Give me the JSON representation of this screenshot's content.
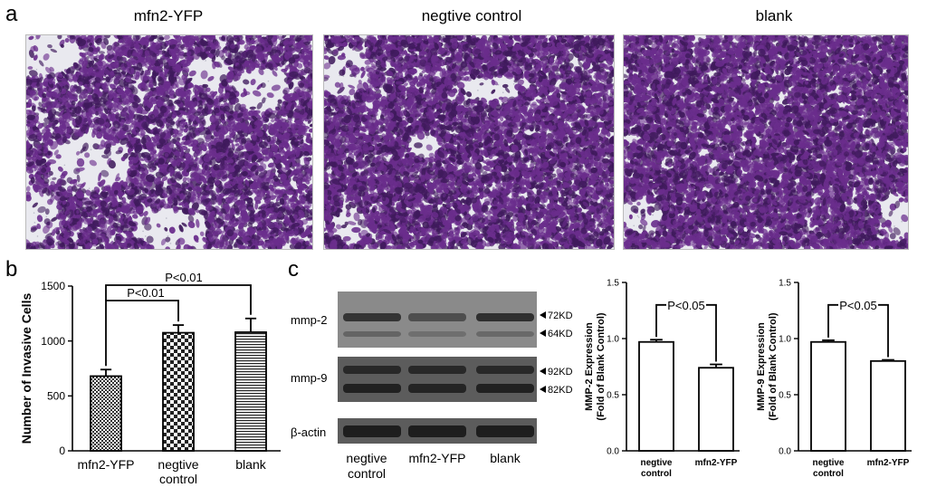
{
  "panel_a": {
    "letter": "a",
    "images": [
      {
        "title": "mfn2-YFP"
      },
      {
        "title": "negtive control"
      },
      {
        "title": "blank"
      }
    ]
  },
  "panel_b": {
    "letter": "b",
    "p_labels": [
      "P<0.01",
      "P<0.01"
    ]
  },
  "panel_c": {
    "letter": "c",
    "blot_rows": [
      "mmp-2",
      "mmp-9",
      "β-actin"
    ],
    "kd_markers": [
      "72KD",
      "64KD",
      "92KD",
      "82KD"
    ],
    "lanes": [
      "negtive\ncontrol",
      "mfn2-YFP",
      "blank"
    ],
    "lane_lines": [
      [
        "negtive",
        "control"
      ],
      [
        "mfn2-YFP"
      ],
      [
        "blank"
      ]
    ],
    "p_labels": [
      "P<0.05",
      "P<0.05"
    ]
  },
  "colors": {
    "stain": "#6a2d8c",
    "stain_dark": "#3f1a5c",
    "background_light": "#e9e9ef",
    "blot_bg": "#6b6b6b",
    "band": "#1e1e1e"
  },
  "chart_data": [
    {
      "type": "bar",
      "panel": "b",
      "categories": [
        "mfn2-YFP",
        "negtive\ncontrol",
        "blank"
      ],
      "category_lines": [
        [
          "mfn2-YFP"
        ],
        [
          "negtive",
          "control"
        ],
        [
          "blank"
        ]
      ],
      "values": [
        680,
        1075,
        1080
      ],
      "errors": [
        60,
        70,
        125
      ],
      "patterns": [
        "checker-small",
        "checker-large",
        "horizontal-lines"
      ],
      "ylabel": "Number of Invasive Cells",
      "xlabel": "",
      "ylim": [
        0,
        1500
      ],
      "yticks": [
        0,
        500,
        1000,
        1500
      ],
      "annotations": [
        {
          "text": "P<0.01",
          "from": 0,
          "to": 1
        },
        {
          "text": "P<0.01",
          "from": 0,
          "to": 2
        }
      ]
    },
    {
      "type": "bar",
      "panel": "c-mmp2",
      "categories": [
        "negtive\ncontrol",
        "mfn2-YFP"
      ],
      "category_lines": [
        [
          "negtive",
          "control"
        ],
        [
          "mfn2-YFP"
        ]
      ],
      "values": [
        0.97,
        0.74
      ],
      "errors": [
        0.02,
        0.03
      ],
      "ylabel_lines": [
        "MMP-2 Expression",
        "(Fold of Blank Control)"
      ],
      "xlabel": "",
      "ylim": [
        0,
        1.5
      ],
      "yticks": [
        0.0,
        0.5,
        1.0,
        1.5
      ],
      "ytick_labels": [
        "0.0",
        "0.5",
        "1.0",
        "1.5"
      ],
      "annotations": [
        {
          "text": "P<0.05",
          "from": 0,
          "to": 1
        }
      ]
    },
    {
      "type": "bar",
      "panel": "c-mmp9",
      "categories": [
        "negtive\ncontrol",
        "mfn2-YFP"
      ],
      "category_lines": [
        [
          "negtive",
          "control"
        ],
        [
          "mfn2-YFP"
        ]
      ],
      "values": [
        0.97,
        0.8
      ],
      "errors": [
        0.015,
        0.01
      ],
      "ylabel_lines": [
        "MMP-9 Expression",
        "(Fold of Blank Control)"
      ],
      "xlabel": "",
      "ylim": [
        0,
        1.5
      ],
      "yticks": [
        0.0,
        0.5,
        1.0,
        1.5
      ],
      "ytick_labels": [
        "0.0",
        "0.5",
        "1.0",
        "1.5"
      ],
      "annotations": [
        {
          "text": "P<0.05",
          "from": 0,
          "to": 1
        }
      ]
    }
  ]
}
